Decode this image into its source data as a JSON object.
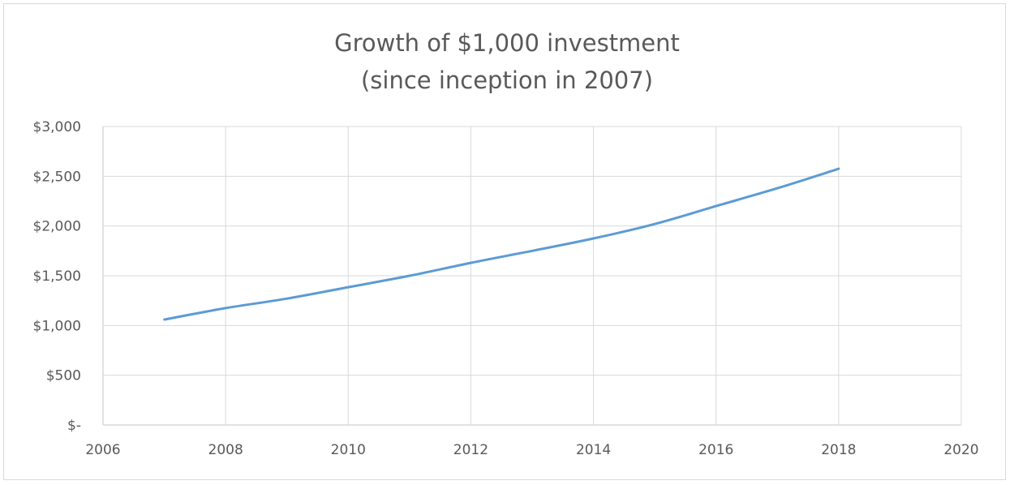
{
  "chart_data": {
    "type": "line",
    "title": "Growth of $1,000 investment",
    "subtitle": "(since inception in 2007)",
    "xlabel": "",
    "ylabel": "",
    "xlim": [
      2006,
      2020
    ],
    "ylim": [
      0,
      3000
    ],
    "x_ticks": [
      2006,
      2008,
      2010,
      2012,
      2014,
      2016,
      2018,
      2020
    ],
    "y_ticks": [
      {
        "value": 0,
        "label": "$-"
      },
      {
        "value": 500,
        "label": "$500"
      },
      {
        "value": 1000,
        "label": "$1,000"
      },
      {
        "value": 1500,
        "label": "$1,500"
      },
      {
        "value": 2000,
        "label": "$2,000"
      },
      {
        "value": 2500,
        "label": "$2,500"
      },
      {
        "value": 3000,
        "label": "$3,000"
      }
    ],
    "grid": true,
    "legend": "none",
    "series": [
      {
        "color": "#5b9bd5",
        "x": [
          2007,
          2008,
          2009,
          2010,
          2011,
          2012,
          2013,
          2014,
          2015,
          2016,
          2017,
          2018
        ],
        "values": [
          1060,
          1175,
          1270,
          1385,
          1500,
          1630,
          1750,
          1875,
          2020,
          2200,
          2380,
          2575
        ]
      }
    ]
  },
  "colors": {
    "line": "#5b9bd5",
    "grid": "#d9d9d9",
    "text": "#595959"
  }
}
